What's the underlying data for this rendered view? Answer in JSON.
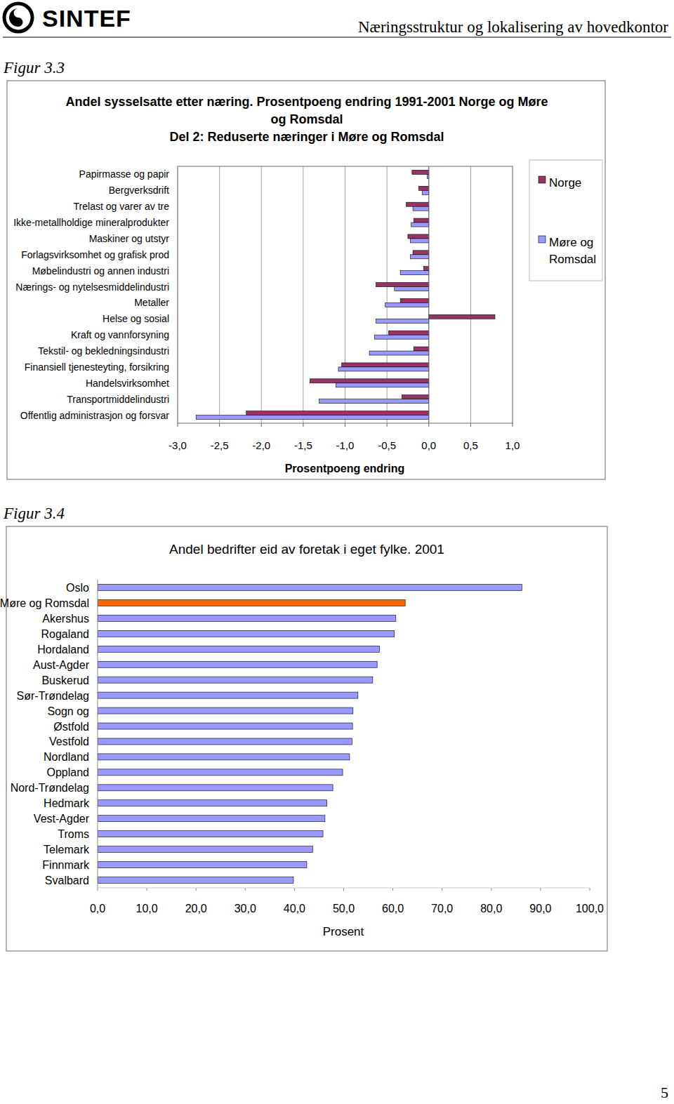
{
  "page": {
    "logo": "SINTEF",
    "header": "Næringsstruktur og lokalisering av hovedkontor",
    "page_number": "5",
    "figure_labels": [
      "Figur 3.3",
      "Figur 3.4"
    ]
  },
  "chart_data": [
    {
      "type": "bar",
      "orientation": "horizontal",
      "title": "Andel sysselsatte etter næring. Prosentpoeng endring 1991-2001 Norge og Møre og Romsdal",
      "subtitle": "Del 2: Reduserte næringer i Møre og Romsdal",
      "x_label": "Prosentpoeng endring",
      "categories": [
        "Papirmasse og papir",
        "Bergverksdrift",
        "Trelast og varer av tre",
        "Ikke-metallholdige mineralprodukter",
        "Maskiner og utstyr",
        "Forlagsvirksomhet og grafisk prod",
        "Møbelindustri og annen industri",
        "Nærings- og nytelsesmiddelindustri",
        "Metaller",
        "Helse og sosial",
        "Kraft og vannforsyning",
        "Tekstil- og bekledningsindustri",
        "Finansiell tjenesteyting, forsikring",
        "Handelsvirksomhet",
        "Transportmiddelindustri",
        "Offentlig administrasjon og forsvar"
      ],
      "series": [
        {
          "name": "Norge",
          "color": "#993366",
          "values": [
            -0.2,
            -0.12,
            -0.27,
            -0.18,
            -0.25,
            -0.19,
            -0.06,
            -0.63,
            -0.34,
            0.79,
            -0.48,
            -0.18,
            -1.04,
            -1.42,
            -0.32,
            -2.18
          ]
        },
        {
          "name": "Møre og Romsdal",
          "color": "#9999ff",
          "values": [
            -0.02,
            -0.08,
            -0.19,
            -0.21,
            -0.22,
            -0.22,
            -0.34,
            -0.41,
            -0.52,
            -0.63,
            -0.65,
            -0.71,
            -1.08,
            -1.11,
            -1.31,
            -2.78
          ]
        }
      ],
      "xlim": [
        -3,
        1
      ],
      "xticks": [
        {
          "value": -3,
          "label": "-3,0"
        },
        {
          "value": -2.5,
          "label": "-2,5"
        },
        {
          "value": -2,
          "label": "-2,0"
        },
        {
          "value": -1.5,
          "label": "-1,5"
        },
        {
          "value": -1,
          "label": "-1,0"
        },
        {
          "value": -0.5,
          "label": "-0,5"
        },
        {
          "value": 0,
          "label": "0,0"
        },
        {
          "value": 0.5,
          "label": "0,5"
        },
        {
          "value": 1,
          "label": "1,0"
        }
      ],
      "grid": true,
      "legend": "right"
    },
    {
      "type": "bar",
      "orientation": "horizontal",
      "title": "Andel bedrifter eid av foretak i eget fylke. 2001",
      "x_label": "Prosent",
      "categories": [
        "Oslo",
        "Møre og Romsdal",
        "Akershus",
        "Rogaland",
        "Hordaland",
        "Aust-Agder",
        "Buskerud",
        "Sør-Trøndelag",
        "Sogn og",
        "Østfold",
        "Vestfold",
        "Nordland",
        "Oppland",
        "Nord-Trøndelag",
        "Hedmark",
        "Vest-Agder",
        "Troms",
        "Telemark",
        "Finnmark",
        "Svalbard"
      ],
      "values": [
        86.2,
        62.5,
        60.6,
        60.3,
        57.3,
        56.8,
        55.9,
        52.9,
        51.9,
        51.8,
        51.7,
        51.2,
        49.8,
        47.8,
        46.6,
        46.2,
        45.8,
        43.7,
        42.5,
        39.8
      ],
      "colors": [
        "#9999ff",
        "#ff6600",
        "#9999ff",
        "#9999ff",
        "#9999ff",
        "#9999ff",
        "#9999ff",
        "#9999ff",
        "#9999ff",
        "#9999ff",
        "#9999ff",
        "#9999ff",
        "#9999ff",
        "#9999ff",
        "#9999ff",
        "#9999ff",
        "#9999ff",
        "#9999ff",
        "#9999ff",
        "#9999ff"
      ],
      "xlim": [
        0,
        100
      ],
      "xticks": [
        {
          "value": 0,
          "label": "0,0"
        },
        {
          "value": 10,
          "label": "10,0"
        },
        {
          "value": 20,
          "label": "20,0"
        },
        {
          "value": 30,
          "label": "30,0"
        },
        {
          "value": 40,
          "label": "40,0"
        },
        {
          "value": 50,
          "label": "50,0"
        },
        {
          "value": 60,
          "label": "60,0"
        },
        {
          "value": 70,
          "label": "70,0"
        },
        {
          "value": 80,
          "label": "80,0"
        },
        {
          "value": 90,
          "label": "90,0"
        },
        {
          "value": 100,
          "label": "100,0"
        }
      ],
      "grid": false
    }
  ]
}
